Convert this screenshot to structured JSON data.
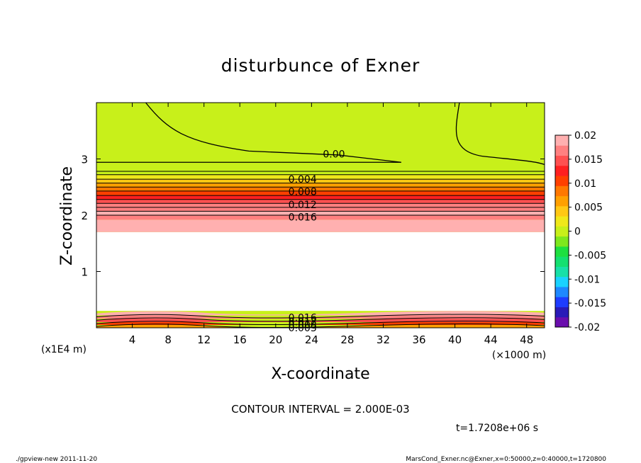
{
  "chart_data": {
    "type": "heatmap",
    "title": "disturbunce of Exner",
    "xlabel": "X-coordinate",
    "ylabel": "Z-coordinate",
    "x_unit": "(×1000 m)",
    "y_unit": "(x1E4 m)",
    "xlim": [
      0,
      50
    ],
    "ylim": [
      0,
      4
    ],
    "x_ticks": [
      "4",
      "8",
      "12",
      "16",
      "20",
      "24",
      "28",
      "32",
      "36",
      "40",
      "44",
      "48"
    ],
    "x_tick_values": [
      4,
      8,
      12,
      16,
      20,
      24,
      28,
      32,
      36,
      40,
      44,
      48
    ],
    "y_ticks": [
      "1",
      "2",
      "3"
    ],
    "y_tick_values": [
      1,
      2,
      3
    ],
    "contour_interval_label": "CONTOUR INTERVAL = 2.000E-03",
    "time_label": "t=1.7208e+06 s",
    "contour_labels": [
      {
        "text": "0.00",
        "x": 26.5,
        "z": 3.09
      },
      {
        "text": "0.004",
        "x": 23.0,
        "z": 2.64
      },
      {
        "text": "0.008",
        "x": 23.0,
        "z": 2.42
      },
      {
        "text": "0.012",
        "x": 23.0,
        "z": 2.19
      },
      {
        "text": "0.016",
        "x": 23.0,
        "z": 1.97
      },
      {
        "text": "0.016",
        "x": 23.0,
        "z": 0.18
      },
      {
        "text": "0.012",
        "x": 23.0,
        "z": 0.11
      },
      {
        "text": "0.008",
        "x": 23.0,
        "z": 0.05
      },
      {
        "text": "0.003",
        "x": 23.0,
        "z": 0.0
      }
    ],
    "upper_band_levels": [
      {
        "z": 2.0,
        "value": 0.019
      },
      {
        "z": 2.07,
        "value": 0.017
      },
      {
        "z": 2.14,
        "value": 0.016
      },
      {
        "z": 2.21,
        "value": 0.014
      },
      {
        "z": 2.28,
        "value": 0.012
      },
      {
        "z": 2.35,
        "value": 0.01
      },
      {
        "z": 2.43,
        "value": 0.008
      },
      {
        "z": 2.5,
        "value": 0.006
      },
      {
        "z": 2.57,
        "value": 0.004
      },
      {
        "z": 2.64,
        "value": 0.002
      },
      {
        "z": 2.72,
        "value": 0.001
      }
    ],
    "colorbar": {
      "min": -0.02,
      "max": 0.02,
      "labels": [
        "0.02",
        "0.015",
        "0.01",
        "0.005",
        "0",
        "-0.005",
        "-0.01",
        "-0.015",
        "-0.02"
      ],
      "label_values": [
        0.02,
        0.015,
        0.01,
        0.005,
        0,
        -0.005,
        -0.01,
        -0.015,
        -0.02
      ],
      "colors": [
        "#6a0dad",
        "#2a1ab8",
        "#1e3cff",
        "#1e88ff",
        "#1ad2ff",
        "#18e0a8",
        "#14e070",
        "#1ee040",
        "#7ee81e",
        "#c8f01a",
        "#f0e81a",
        "#ffc814",
        "#ffa000",
        "#ff7800",
        "#ff4000",
        "#ff2020",
        "#ff5050",
        "#ff8080",
        "#ffb0b0"
      ]
    }
  },
  "footer": {
    "left": "./gpview-new  2011-11-20",
    "right": "MarsCond_Exner.nc@Exner,x=0:50000,z=0:40000,t=1720800"
  }
}
